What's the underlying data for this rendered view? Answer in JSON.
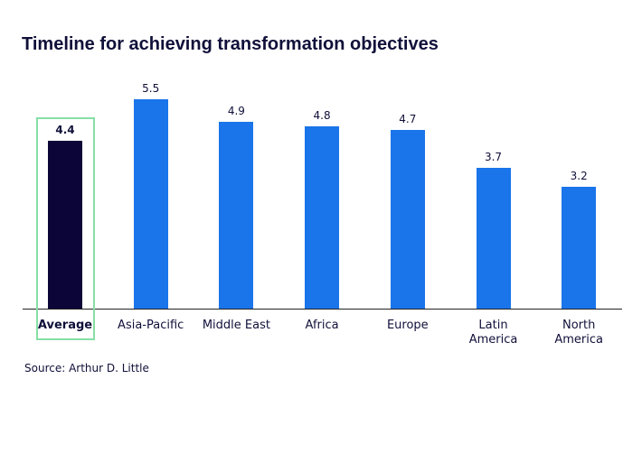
{
  "chart_data": {
    "type": "bar",
    "title": "Timeline for achieving transformation objectives",
    "categories": [
      "Average",
      "Asia-Pacific",
      "Middle East",
      "Africa",
      "Europe",
      "Latin\nAmerica",
      "North\nAmerica"
    ],
    "values": [
      4.4,
      5.5,
      4.9,
      4.8,
      4.7,
      3.7,
      3.2
    ],
    "colors": [
      "#0c0537",
      "#1a74ea",
      "#1a74ea",
      "#1a74ea",
      "#1a74ea",
      "#1a74ea",
      "#1a74ea"
    ],
    "highlight": {
      "index": 0,
      "color": "#86dfa5"
    },
    "source": "Source: Arthur D. Little"
  }
}
